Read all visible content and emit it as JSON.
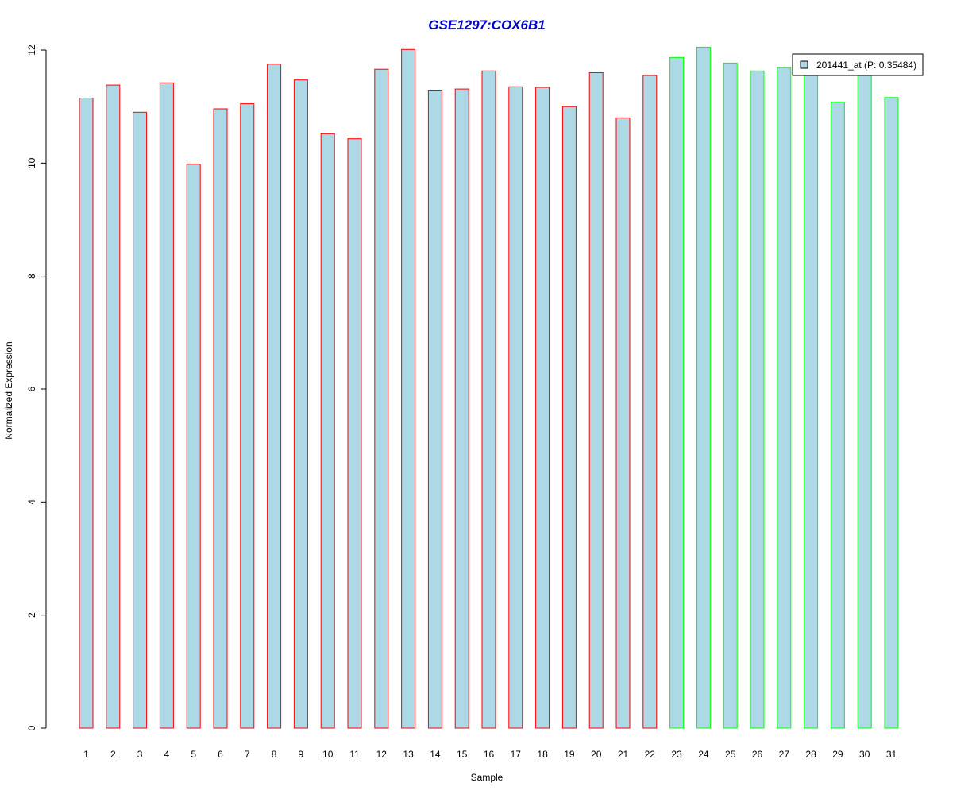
{
  "chart_data": {
    "type": "bar",
    "title": "GSE1297:COX6B1",
    "xlabel": "Sample",
    "ylabel": "Normalized Expression",
    "ylim": [
      0,
      12
    ],
    "yticks": [
      0,
      2,
      4,
      6,
      8,
      10,
      12
    ],
    "grid": false,
    "legend_position": "top-right",
    "categories": [
      "1",
      "2",
      "3",
      "4",
      "5",
      "6",
      "7",
      "8",
      "9",
      "10",
      "11",
      "12",
      "13",
      "14",
      "15",
      "16",
      "17",
      "18",
      "19",
      "20",
      "21",
      "22",
      "23",
      "24",
      "25",
      "26",
      "27",
      "28",
      "29",
      "30",
      "31"
    ],
    "series": [
      {
        "name": "201441_at (P: 0.35484)",
        "values": [
          11.15,
          11.38,
          10.9,
          11.42,
          9.98,
          10.96,
          11.05,
          11.75,
          11.47,
          10.52,
          10.43,
          11.66,
          12.01,
          11.29,
          11.31,
          11.63,
          11.35,
          11.34,
          11.0,
          11.6,
          10.8,
          11.55,
          11.87,
          12.05,
          11.77,
          11.63,
          11.69,
          11.62,
          11.08,
          11.6,
          11.16
        ],
        "fill": "#add8e6"
      }
    ],
    "groups": [
      {
        "samples": "1-22",
        "border_color": "#ff0000"
      },
      {
        "samples": "23-31",
        "border_color": "#00ff00"
      }
    ],
    "group_of_sample": [
      0,
      0,
      0,
      0,
      0,
      0,
      0,
      0,
      0,
      0,
      0,
      0,
      0,
      0,
      0,
      0,
      0,
      0,
      0,
      0,
      0,
      0,
      1,
      1,
      1,
      1,
      1,
      1,
      1,
      1,
      1
    ]
  }
}
